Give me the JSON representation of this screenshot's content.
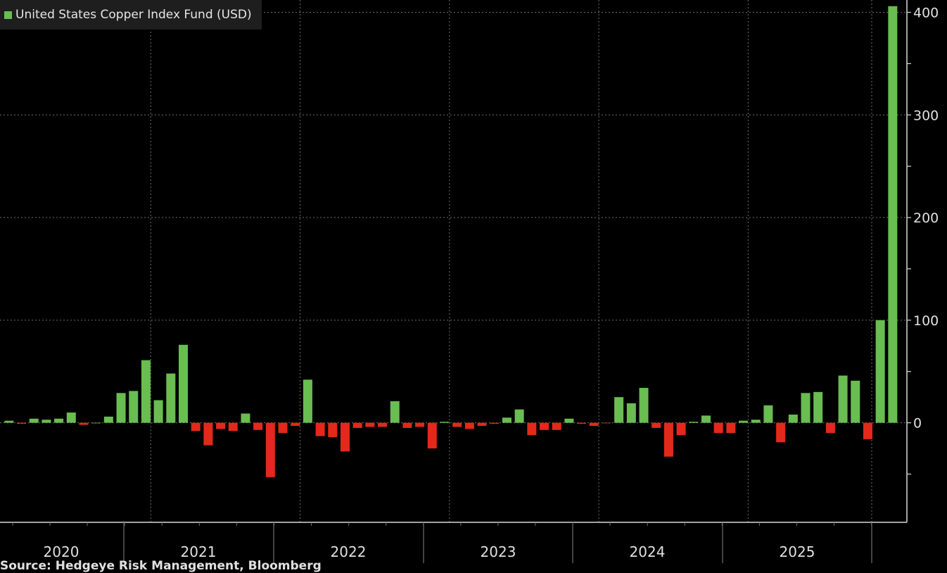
{
  "chart_data": {
    "type": "bar",
    "title": "",
    "xlabel": "",
    "ylabel": "",
    "series_name": "United States Copper Index Fund (USD)",
    "legend_position": "top-left",
    "grid": true,
    "ylim": [
      -97,
      412
    ],
    "y_ticks": [
      0,
      100,
      200,
      300,
      400
    ],
    "x_year_labels": [
      "2020",
      "2021",
      "2022",
      "2023",
      "2024",
      "2025"
    ],
    "colors": {
      "positive": "#69bd51",
      "negative": "#e2291b",
      "grid": "#6e6e6e",
      "axis": "#d9d9d9",
      "text": "#e0e0e0",
      "background": "#000000"
    },
    "values": [
      2,
      -1,
      4,
      3,
      4,
      10,
      -2,
      0,
      6,
      29,
      31,
      61,
      22,
      48,
      76,
      -8,
      -22,
      -6,
      -8,
      9,
      -7,
      -53,
      -10,
      -3,
      42,
      -13,
      -14,
      -28,
      -5,
      -4,
      -4,
      21,
      -5,
      -4,
      -25,
      1,
      -4,
      -6,
      -3,
      -1,
      5,
      13,
      -12,
      -7,
      -7,
      4,
      -1,
      -3,
      -0.5,
      25,
      19,
      34,
      -5,
      -33,
      -12,
      1,
      7,
      -10,
      -10,
      2,
      3,
      17,
      -19,
      8,
      29,
      30,
      -10,
      46,
      41,
      -16,
      100,
      406
    ]
  },
  "source_text": "Source: Hedgeye Risk Management, Bloomberg"
}
